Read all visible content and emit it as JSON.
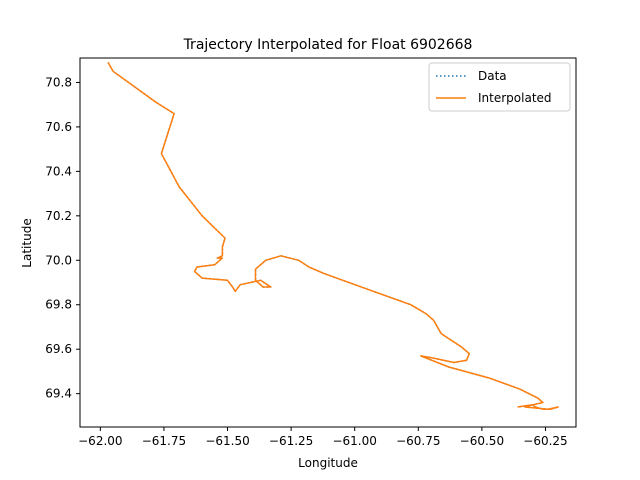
{
  "chart_data": {
    "type": "line",
    "title": "Trajectory Interpolated for Float 6902668",
    "xlabel": "Longitude",
    "ylabel": "Latitude",
    "xlim": [
      -62.08,
      -60.13
    ],
    "ylim": [
      69.25,
      70.91
    ],
    "xticks": [
      -62.0,
      -61.75,
      -61.5,
      -61.25,
      -61.0,
      -60.75,
      -60.5,
      -60.25
    ],
    "xtick_labels": [
      "−62.00",
      "−61.75",
      "−61.50",
      "−61.25",
      "−61.00",
      "−60.75",
      "−60.50",
      "−60.25"
    ],
    "yticks": [
      69.4,
      69.6,
      69.8,
      70.0,
      70.2,
      70.4,
      70.6,
      70.8
    ],
    "ytick_labels": [
      "69.4",
      "69.6",
      "69.8",
      "70.0",
      "70.2",
      "70.4",
      "70.6",
      "70.8"
    ],
    "grid": false,
    "legend_position": "top-right",
    "series": [
      {
        "name": "Data",
        "style": "dotted",
        "color": "#1f77b4",
        "points": [
          [
            -61.97,
            70.89
          ],
          [
            -61.95,
            70.85
          ],
          [
            -61.78,
            70.71
          ],
          [
            -61.71,
            70.66
          ],
          [
            -61.76,
            70.48
          ],
          [
            -61.69,
            70.33
          ],
          [
            -61.6,
            70.2
          ],
          [
            -61.51,
            70.1
          ],
          [
            -61.52,
            70.06
          ],
          [
            -61.52,
            70.02
          ],
          [
            -61.54,
            70.01
          ],
          [
            -61.52,
            70.01
          ],
          [
            -61.55,
            69.98
          ],
          [
            -61.62,
            69.97
          ],
          [
            -61.63,
            69.95
          ],
          [
            -61.6,
            69.92
          ],
          [
            -61.5,
            69.91
          ],
          [
            -61.48,
            69.88
          ],
          [
            -61.47,
            69.86
          ],
          [
            -61.45,
            69.89
          ],
          [
            -61.37,
            69.91
          ],
          [
            -61.33,
            69.88
          ],
          [
            -61.36,
            69.88
          ],
          [
            -61.39,
            69.91
          ],
          [
            -61.39,
            69.96
          ],
          [
            -61.35,
            70.0
          ],
          [
            -61.29,
            70.02
          ],
          [
            -61.22,
            70.0
          ],
          [
            -61.18,
            69.97
          ],
          [
            -61.12,
            69.94
          ],
          [
            -60.95,
            69.87
          ],
          [
            -60.78,
            69.8
          ],
          [
            -60.72,
            69.76
          ],
          [
            -60.69,
            69.73
          ],
          [
            -60.66,
            69.67
          ],
          [
            -60.58,
            69.61
          ],
          [
            -60.55,
            69.58
          ],
          [
            -60.56,
            69.55
          ],
          [
            -60.61,
            69.54
          ],
          [
            -60.69,
            69.56
          ],
          [
            -60.74,
            69.57
          ],
          [
            -60.63,
            69.52
          ],
          [
            -60.47,
            69.47
          ],
          [
            -60.35,
            69.42
          ],
          [
            -60.28,
            69.38
          ],
          [
            -60.26,
            69.36
          ],
          [
            -60.3,
            69.35
          ],
          [
            -60.29,
            69.34
          ],
          [
            -60.26,
            69.33
          ],
          [
            -60.23,
            69.33
          ],
          [
            -60.2,
            69.34
          ],
          [
            -60.24,
            69.33
          ],
          [
            -60.33,
            69.34
          ],
          [
            -60.3,
            69.35
          ],
          [
            -60.36,
            69.34
          ]
        ]
      },
      {
        "name": "Interpolated",
        "style": "solid",
        "color": "#ff7f0e",
        "points": [
          [
            -61.97,
            70.89
          ],
          [
            -61.95,
            70.85
          ],
          [
            -61.78,
            70.71
          ],
          [
            -61.71,
            70.66
          ],
          [
            -61.76,
            70.48
          ],
          [
            -61.69,
            70.33
          ],
          [
            -61.6,
            70.2
          ],
          [
            -61.51,
            70.1
          ],
          [
            -61.52,
            70.06
          ],
          [
            -61.52,
            70.02
          ],
          [
            -61.54,
            70.01
          ],
          [
            -61.52,
            70.01
          ],
          [
            -61.55,
            69.98
          ],
          [
            -61.62,
            69.97
          ],
          [
            -61.63,
            69.95
          ],
          [
            -61.6,
            69.92
          ],
          [
            -61.5,
            69.91
          ],
          [
            -61.48,
            69.88
          ],
          [
            -61.47,
            69.86
          ],
          [
            -61.45,
            69.89
          ],
          [
            -61.37,
            69.91
          ],
          [
            -61.33,
            69.88
          ],
          [
            -61.36,
            69.88
          ],
          [
            -61.39,
            69.91
          ],
          [
            -61.39,
            69.96
          ],
          [
            -61.35,
            70.0
          ],
          [
            -61.29,
            70.02
          ],
          [
            -61.22,
            70.0
          ],
          [
            -61.18,
            69.97
          ],
          [
            -61.12,
            69.94
          ],
          [
            -60.95,
            69.87
          ],
          [
            -60.78,
            69.8
          ],
          [
            -60.72,
            69.76
          ],
          [
            -60.69,
            69.73
          ],
          [
            -60.66,
            69.67
          ],
          [
            -60.58,
            69.61
          ],
          [
            -60.55,
            69.58
          ],
          [
            -60.56,
            69.55
          ],
          [
            -60.61,
            69.54
          ],
          [
            -60.69,
            69.56
          ],
          [
            -60.74,
            69.57
          ],
          [
            -60.63,
            69.52
          ],
          [
            -60.47,
            69.47
          ],
          [
            -60.35,
            69.42
          ],
          [
            -60.28,
            69.38
          ],
          [
            -60.26,
            69.36
          ],
          [
            -60.3,
            69.35
          ],
          [
            -60.29,
            69.34
          ],
          [
            -60.26,
            69.33
          ],
          [
            -60.23,
            69.33
          ],
          [
            -60.2,
            69.34
          ],
          [
            -60.24,
            69.33
          ],
          [
            -60.33,
            69.34
          ],
          [
            -60.3,
            69.35
          ],
          [
            -60.36,
            69.34
          ]
        ]
      }
    ]
  }
}
